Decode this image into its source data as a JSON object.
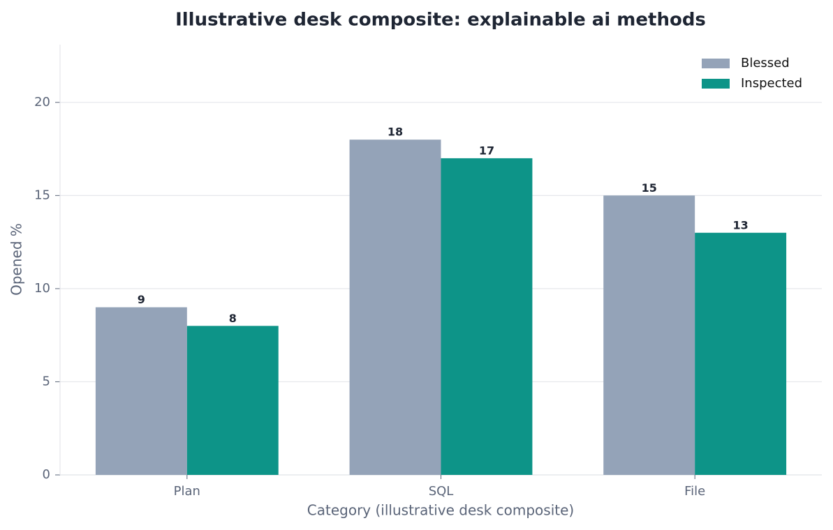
{
  "chart_data": {
    "type": "bar",
    "title": "Illustrative desk composite: explainable ai methods",
    "x_label": "Category (illustrative desk composite)",
    "y_label": "Opened %",
    "categories": [
      "Plan",
      "SQL",
      "File"
    ],
    "series": [
      {
        "name": "Blessed",
        "color": "#94a3b8",
        "values": [
          9,
          18,
          15
        ]
      },
      {
        "name": "Inspected",
        "color": "#0d9488",
        "values": [
          8,
          17,
          13
        ]
      }
    ],
    "ylim": [
      0,
      23.1
    ],
    "yticks": [
      0,
      5,
      10,
      15,
      20
    ],
    "grid": true,
    "legend": "upper right"
  }
}
